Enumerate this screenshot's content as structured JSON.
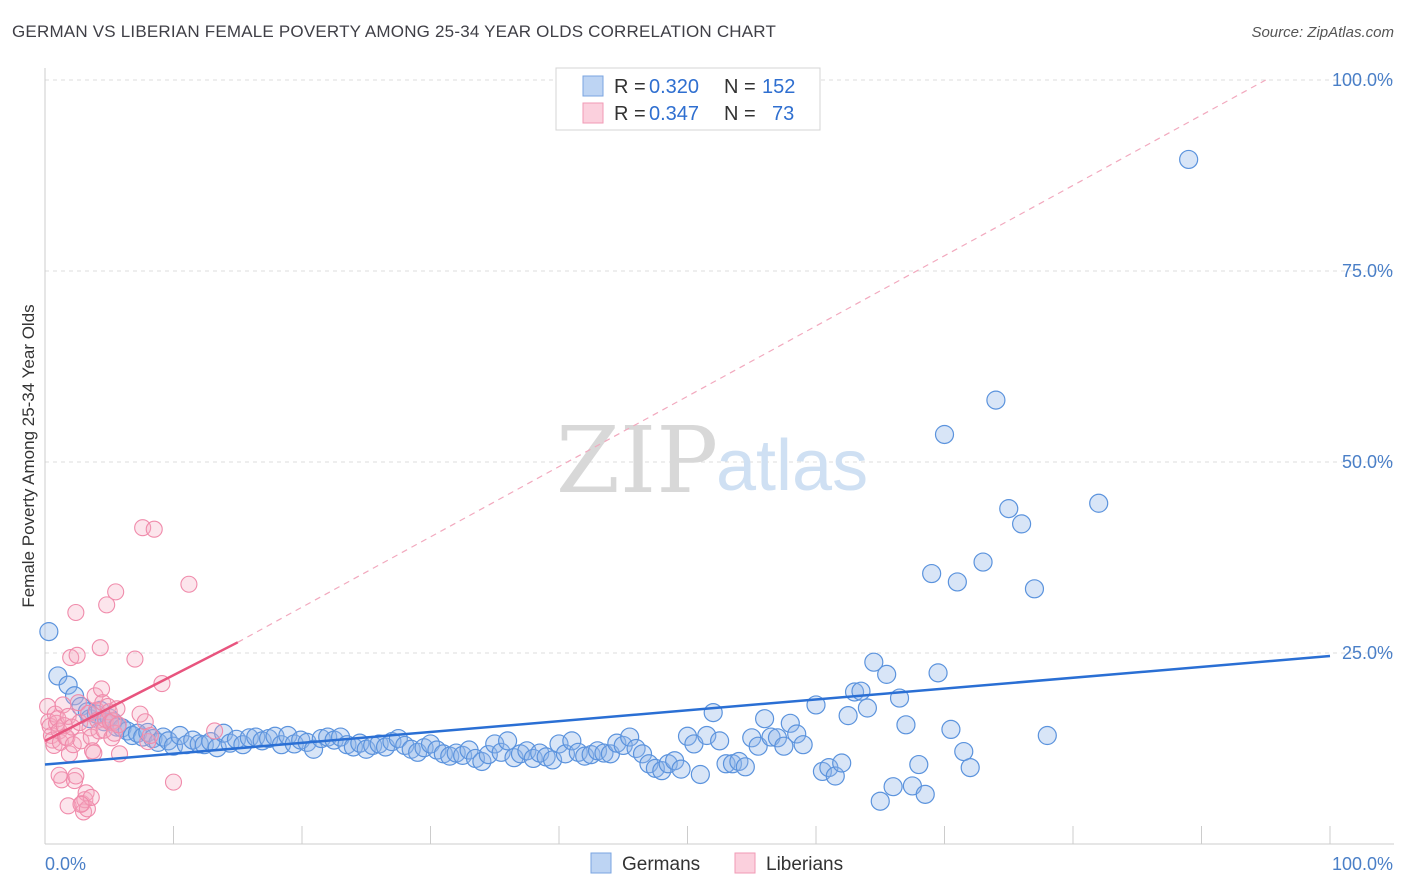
{
  "header": {
    "title": "GERMAN VS LIBERIAN FEMALE POVERTY AMONG 25-34 YEAR OLDS CORRELATION CHART",
    "source": "Source: ZipAtlas.com"
  },
  "legend": {
    "rows": [
      {
        "r_label": "R =",
        "r_value": "0.320",
        "n_label": "N =",
        "n_value": "152",
        "color": "#8fb4e8"
      },
      {
        "r_label": "R =",
        "r_value": "0.347",
        "n_label": "N =",
        "n_value": "73",
        "color": "#f5a8c0"
      }
    ]
  },
  "bottom_legend": {
    "germans": "Germans",
    "liberians": "Liberians"
  },
  "watermark": {
    "zip": "ZIP",
    "atlas": "atlas"
  },
  "colors": {
    "germans": "#5b93dd",
    "germans_line": "#2a6fd4",
    "liberians": "#f08bab",
    "liberians_line": "#e8547e",
    "tick": "#4a7fc7"
  },
  "chart_data": {
    "type": "scatter",
    "title": "GERMAN VS LIBERIAN FEMALE POVERTY AMONG 25-34 YEAR OLDS CORRELATION CHART",
    "xlabel": "",
    "ylabel": "Female Poverty Among 25-34 Year Olds",
    "xlim": [
      0,
      100
    ],
    "ylim": [
      0,
      100
    ],
    "x_tick_labels": [
      "0.0%",
      "100.0%"
    ],
    "y_ticks": [
      25,
      50,
      75,
      100
    ],
    "y_tick_labels": [
      "25.0%",
      "50.0%",
      "75.0%",
      "100.0%"
    ],
    "grid": true,
    "legend_position": "top-center",
    "series": [
      {
        "name": "Germans",
        "r": 0.32,
        "n": 152,
        "trend": {
          "x": [
            0,
            100
          ],
          "y": [
            10.4,
            24.6
          ]
        },
        "points": [
          [
            0.3,
            27.8
          ],
          [
            1.0,
            22.0
          ],
          [
            1.8,
            20.8
          ],
          [
            2.3,
            19.4
          ],
          [
            2.8,
            18.0
          ],
          [
            3.3,
            17.3
          ],
          [
            3.5,
            16.4
          ],
          [
            4.0,
            17.0
          ],
          [
            4.3,
            17.5
          ],
          [
            4.6,
            16.0
          ],
          [
            5.0,
            16.5
          ],
          [
            5.3,
            16.0
          ],
          [
            5.6,
            15.3
          ],
          [
            6.0,
            15.2
          ],
          [
            6.4,
            14.8
          ],
          [
            6.8,
            14.2
          ],
          [
            7.2,
            14.5
          ],
          [
            7.6,
            14.0
          ],
          [
            8.0,
            14.6
          ],
          [
            8.4,
            13.8
          ],
          [
            8.8,
            13.3
          ],
          [
            9.2,
            14.0
          ],
          [
            9.6,
            13.5
          ],
          [
            10.0,
            12.8
          ],
          [
            10.5,
            14.2
          ],
          [
            11.0,
            13.0
          ],
          [
            11.5,
            13.6
          ],
          [
            12.0,
            13.1
          ],
          [
            12.4,
            13.0
          ],
          [
            12.9,
            13.4
          ],
          [
            13.4,
            12.6
          ],
          [
            13.9,
            14.5
          ],
          [
            14.4,
            13.2
          ],
          [
            14.9,
            13.7
          ],
          [
            15.4,
            13.0
          ],
          [
            15.9,
            13.9
          ],
          [
            16.4,
            14.0
          ],
          [
            16.9,
            13.5
          ],
          [
            17.4,
            13.8
          ],
          [
            17.9,
            14.1
          ],
          [
            18.4,
            13.0
          ],
          [
            18.9,
            14.2
          ],
          [
            19.4,
            13.1
          ],
          [
            19.9,
            13.6
          ],
          [
            20.4,
            13.3
          ],
          [
            20.9,
            12.4
          ],
          [
            21.5,
            13.8
          ],
          [
            22.0,
            14.0
          ],
          [
            22.5,
            13.6
          ],
          [
            23.0,
            14.0
          ],
          [
            23.5,
            13.0
          ],
          [
            24.0,
            12.7
          ],
          [
            24.5,
            13.2
          ],
          [
            25.0,
            12.4
          ],
          [
            25.5,
            12.9
          ],
          [
            26.0,
            13.1
          ],
          [
            26.5,
            12.7
          ],
          [
            27.0,
            13.4
          ],
          [
            27.5,
            13.8
          ],
          [
            28.0,
            12.9
          ],
          [
            28.5,
            12.4
          ],
          [
            29.0,
            12.0
          ],
          [
            29.5,
            12.6
          ],
          [
            30.0,
            13.1
          ],
          [
            30.5,
            12.3
          ],
          [
            31.0,
            11.8
          ],
          [
            31.5,
            11.5
          ],
          [
            32.0,
            11.9
          ],
          [
            32.5,
            11.6
          ],
          [
            33.0,
            12.3
          ],
          [
            33.5,
            11.2
          ],
          [
            34.0,
            10.8
          ],
          [
            34.5,
            11.7
          ],
          [
            35.0,
            13.1
          ],
          [
            35.5,
            12.0
          ],
          [
            36.0,
            13.5
          ],
          [
            36.5,
            11.3
          ],
          [
            37.0,
            11.8
          ],
          [
            37.5,
            12.2
          ],
          [
            38.0,
            11.2
          ],
          [
            38.5,
            11.9
          ],
          [
            39.0,
            11.4
          ],
          [
            39.5,
            11.0
          ],
          [
            40.0,
            13.1
          ],
          [
            40.5,
            11.8
          ],
          [
            41.0,
            13.5
          ],
          [
            41.5,
            12.0
          ],
          [
            42.0,
            11.5
          ],
          [
            42.5,
            11.7
          ],
          [
            43.0,
            12.2
          ],
          [
            43.5,
            11.9
          ],
          [
            44.0,
            11.8
          ],
          [
            44.5,
            13.2
          ],
          [
            45.0,
            12.9
          ],
          [
            45.5,
            14.0
          ],
          [
            46.0,
            12.5
          ],
          [
            46.5,
            11.8
          ],
          [
            47.0,
            10.5
          ],
          [
            47.5,
            9.9
          ],
          [
            48.0,
            9.6
          ],
          [
            48.5,
            10.5
          ],
          [
            49.0,
            10.9
          ],
          [
            49.5,
            9.8
          ],
          [
            50.0,
            14.1
          ],
          [
            50.5,
            13.1
          ],
          [
            51.0,
            9.1
          ],
          [
            51.5,
            14.2
          ],
          [
            52.0,
            17.2
          ],
          [
            52.5,
            13.5
          ],
          [
            53.0,
            10.5
          ],
          [
            53.5,
            10.5
          ],
          [
            54.0,
            10.8
          ],
          [
            54.5,
            10.1
          ],
          [
            55.0,
            13.9
          ],
          [
            55.5,
            12.8
          ],
          [
            56.0,
            16.4
          ],
          [
            56.5,
            14.0
          ],
          [
            57.0,
            13.9
          ],
          [
            57.5,
            12.8
          ],
          [
            58.0,
            15.8
          ],
          [
            58.5,
            14.4
          ],
          [
            59.0,
            13.0
          ],
          [
            60.0,
            18.2
          ],
          [
            60.5,
            9.5
          ],
          [
            61.0,
            10.0
          ],
          [
            61.5,
            8.9
          ],
          [
            62.0,
            10.6
          ],
          [
            62.5,
            16.8
          ],
          [
            63.0,
            19.9
          ],
          [
            63.5,
            20.0
          ],
          [
            64.0,
            17.8
          ],
          [
            64.5,
            23.8
          ],
          [
            65.0,
            5.6
          ],
          [
            65.5,
            22.2
          ],
          [
            66.0,
            7.5
          ],
          [
            66.5,
            19.1
          ],
          [
            67.0,
            15.6
          ],
          [
            67.5,
            7.6
          ],
          [
            68.0,
            10.4
          ],
          [
            68.5,
            6.5
          ],
          [
            69.0,
            35.4
          ],
          [
            69.5,
            22.4
          ],
          [
            70.0,
            53.6
          ],
          [
            70.5,
            15.0
          ],
          [
            71.0,
            34.3
          ],
          [
            71.5,
            12.1
          ],
          [
            72.0,
            10.0
          ],
          [
            73.0,
            36.9
          ],
          [
            74.0,
            58.1
          ],
          [
            75.0,
            43.9
          ],
          [
            76.0,
            41.9
          ],
          [
            77.0,
            33.4
          ],
          [
            78.0,
            14.2
          ],
          [
            82.0,
            44.6
          ],
          [
            89.0,
            89.6
          ]
        ]
      },
      {
        "name": "Liberians",
        "r": 0.347,
        "n": 73,
        "trend": {
          "x": [
            0,
            15
          ],
          "y": [
            13.5,
            26.4
          ]
        },
        "trend_extension": {
          "x": [
            15,
            95
          ],
          "y": [
            26.4,
            100
          ]
        },
        "points": [
          [
            0.2,
            18.0
          ],
          [
            0.3,
            16.0
          ],
          [
            0.4,
            15.4
          ],
          [
            0.5,
            14.2
          ],
          [
            0.6,
            13.6
          ],
          [
            0.7,
            12.9
          ],
          [
            0.8,
            17.0
          ],
          [
            0.9,
            15.8
          ],
          [
            1.0,
            16.4
          ],
          [
            1.1,
            14.8
          ],
          [
            1.2,
            13.3
          ],
          [
            1.3,
            8.4
          ],
          [
            1.4,
            18.2
          ],
          [
            1.5,
            15.5
          ],
          [
            1.6,
            14.0
          ],
          [
            1.7,
            13.9
          ],
          [
            1.8,
            16.7
          ],
          [
            1.9,
            11.8
          ],
          [
            2.0,
            24.4
          ],
          [
            2.1,
            15.3
          ],
          [
            2.2,
            13.0
          ],
          [
            2.3,
            8.3
          ],
          [
            2.4,
            30.3
          ],
          [
            2.5,
            24.7
          ],
          [
            2.6,
            18.5
          ],
          [
            2.7,
            15.9
          ],
          [
            2.8,
            13.5
          ],
          [
            2.9,
            5.3
          ],
          [
            3.0,
            4.2
          ],
          [
            3.1,
            5.8
          ],
          [
            3.2,
            6.7
          ],
          [
            3.3,
            4.6
          ],
          [
            3.4,
            17.1
          ],
          [
            3.5,
            15.2
          ],
          [
            3.6,
            14.0
          ],
          [
            3.7,
            12.2
          ],
          [
            3.8,
            11.9
          ],
          [
            3.9,
            19.4
          ],
          [
            4.0,
            17.5
          ],
          [
            4.1,
            16.2
          ],
          [
            4.2,
            14.8
          ],
          [
            4.3,
            25.7
          ],
          [
            4.4,
            20.3
          ],
          [
            4.5,
            18.5
          ],
          [
            4.6,
            14.9
          ],
          [
            4.7,
            16.3
          ],
          [
            4.8,
            31.3
          ],
          [
            4.9,
            18.0
          ],
          [
            5.0,
            17.3
          ],
          [
            5.1,
            15.9
          ],
          [
            5.2,
            13.9
          ],
          [
            5.3,
            16.1
          ],
          [
            5.4,
            14.5
          ],
          [
            5.5,
            33.0
          ],
          [
            5.6,
            17.7
          ],
          [
            5.7,
            15.6
          ],
          [
            5.8,
            11.8
          ],
          [
            7.0,
            24.2
          ],
          [
            7.4,
            17.0
          ],
          [
            7.8,
            16.0
          ],
          [
            8.0,
            13.4
          ],
          [
            8.2,
            14.2
          ],
          [
            7.6,
            41.4
          ],
          [
            8.5,
            41.2
          ],
          [
            9.1,
            21.0
          ],
          [
            10.0,
            8.1
          ],
          [
            11.2,
            34.0
          ],
          [
            13.2,
            14.8
          ],
          [
            1.1,
            9.0
          ],
          [
            1.8,
            5.0
          ],
          [
            2.4,
            8.9
          ],
          [
            3.6,
            6.1
          ],
          [
            2.8,
            5.2
          ]
        ]
      }
    ]
  }
}
